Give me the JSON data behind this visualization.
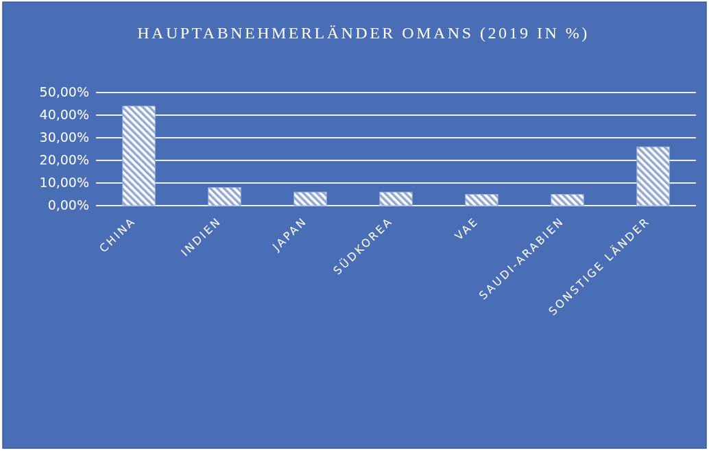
{
  "chart_data": {
    "type": "bar",
    "title": "HAUPTABNEHMERLÄNDER OMANS (2019 IN %)",
    "categories": [
      "CHINA",
      "INDIEN",
      "JAPAN",
      "SÜDKOREA",
      "VAE",
      "SAUDI-ARABIEN",
      "SONSTIGE LÄNDER"
    ],
    "values": [
      44,
      8,
      6,
      6,
      5,
      5,
      26
    ],
    "color": "#92a8d3",
    "ylim": [
      0,
      50
    ],
    "yticks": [
      {
        "value": 0,
        "label": "0,00%"
      },
      {
        "value": 10,
        "label": "10,00%"
      },
      {
        "value": 20,
        "label": "20,00%"
      },
      {
        "value": 30,
        "label": "30,00%"
      },
      {
        "value": 40,
        "label": "40,00%"
      },
      {
        "value": 50,
        "label": "50,00%"
      }
    ],
    "grid": "y"
  }
}
